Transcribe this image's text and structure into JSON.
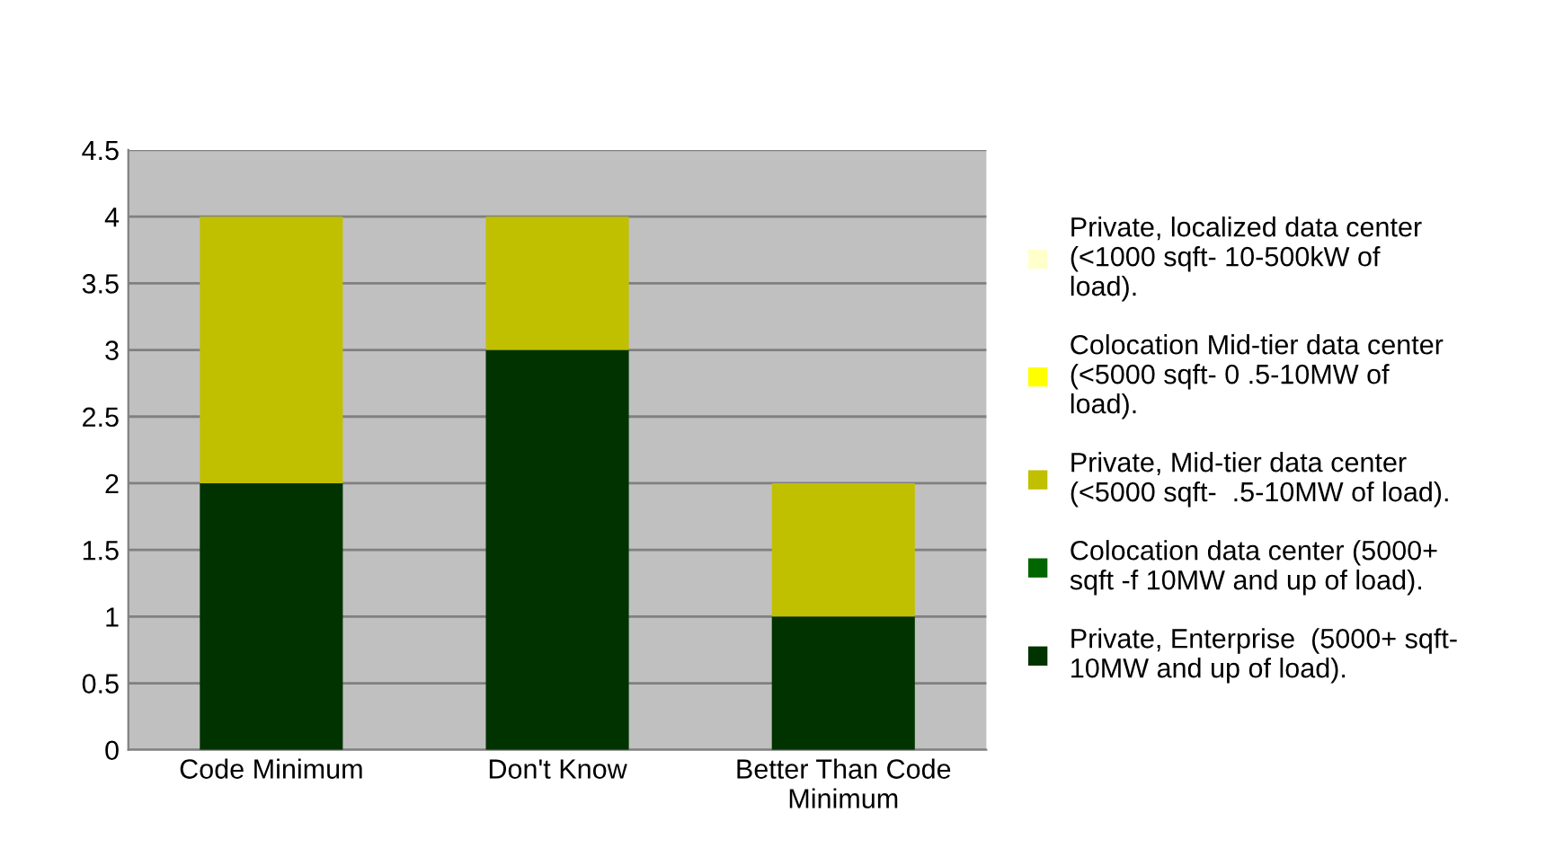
{
  "chart_data": {
    "type": "bar",
    "stacked": true,
    "categories": [
      "Code Minimum",
      "Don't Know",
      "Better Than Code\nMinimum"
    ],
    "series": [
      {
        "name": "Private, Enterprise  (5000+ sqft-\n10MW and up of load).",
        "color": "#003300",
        "values": [
          2,
          3,
          1
        ]
      },
      {
        "name": "Colocation data center (5000+\nsqft -f 10MW and up of load).",
        "color": "#006600",
        "values": [
          0,
          0,
          0
        ]
      },
      {
        "name": "Private, Mid-tier data center\n(<5000 sqft-  .5-10MW of load).",
        "color": "#c0c000",
        "values": [
          2,
          1,
          1
        ]
      },
      {
        "name": "Colocation Mid-tier data center\n(<5000 sqft- 0 .5-10MW of\nload).",
        "color": "#ffff00",
        "values": [
          0,
          0,
          0
        ]
      },
      {
        "name": "Private, localized data center\n(<1000 sqft- 10-500kW of\nload).",
        "color": "#ffffcc",
        "values": [
          0,
          0,
          0
        ]
      }
    ],
    "ylim": [
      0,
      4.5
    ],
    "yticks": [
      0,
      0.5,
      1,
      1.5,
      2,
      2.5,
      3,
      3.5,
      4,
      4.5
    ],
    "grid": "y",
    "legend": "right"
  }
}
